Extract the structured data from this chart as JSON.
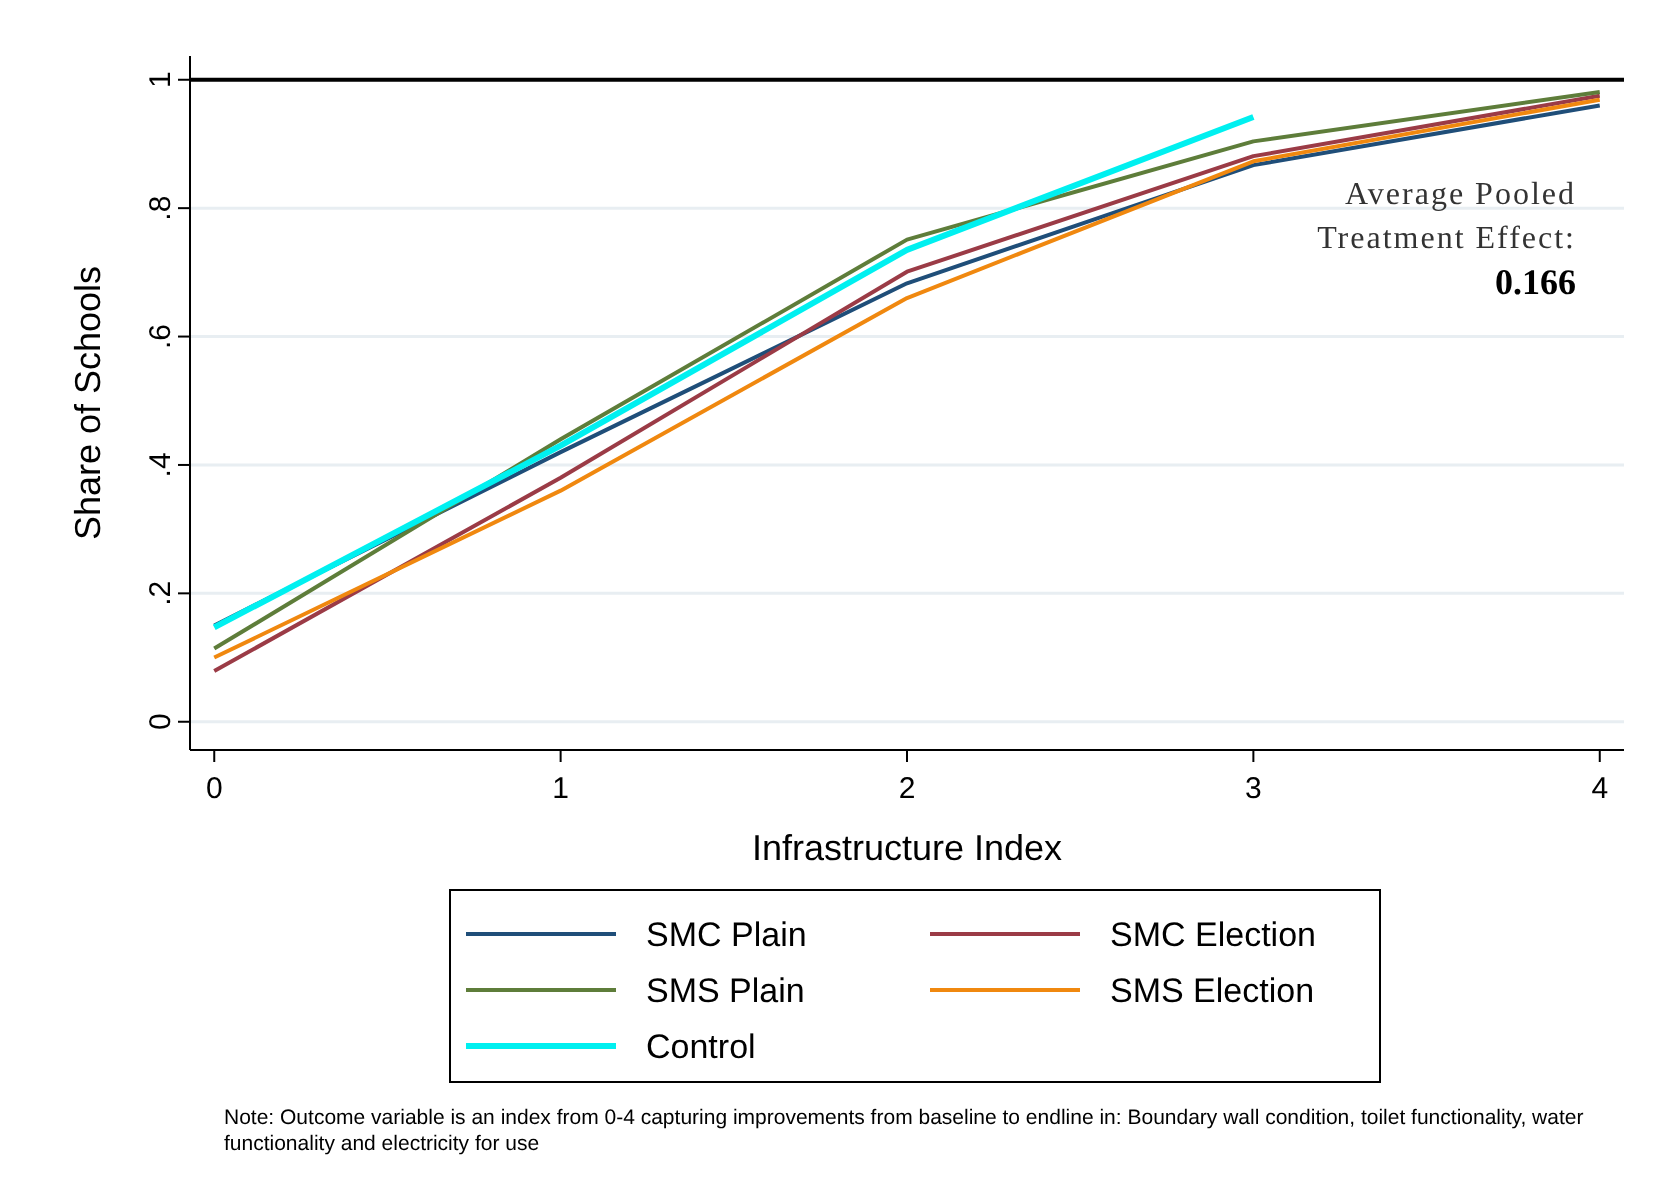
{
  "chart_data": {
    "type": "line",
    "xlabel": "Infrastructure Index",
    "ylabel": "Share of Schools",
    "x": [
      0,
      1,
      2,
      3,
      4
    ],
    "series": [
      {
        "name": "SMC Plain",
        "color": "#1f4e79",
        "values": [
          0.15,
          0.42,
          0.683,
          0.867,
          0.96
        ]
      },
      {
        "name": "SMC Election",
        "color": "#9b3b46",
        "values": [
          0.079,
          0.38,
          0.701,
          0.881,
          0.975
        ]
      },
      {
        "name": "SMS Plain",
        "color": "#5e7d3a",
        "values": [
          0.114,
          0.44,
          0.751,
          0.904,
          0.981
        ]
      },
      {
        "name": "SMS Election",
        "color": "#f0880f",
        "values": [
          0.1,
          0.36,
          0.66,
          0.873,
          0.969
        ]
      },
      {
        "name": "Control",
        "color": "#00f0f0",
        "values": [
          0.147,
          0.43,
          0.735,
          0.942,
          null
        ]
      }
    ],
    "xlim": [
      -0.07,
      4.07
    ],
    "ylim": [
      -0.044,
      1.037
    ],
    "xticks": [
      0,
      1,
      2,
      3,
      4
    ],
    "yticks": [
      0,
      {
        "value": 0.2,
        "label": ".2"
      },
      {
        "value": 0.4,
        "label": ".4"
      },
      {
        "value": 0.6,
        "label": ".6"
      },
      {
        "value": 0.8,
        "label": ".8"
      },
      1
    ],
    "grid": "y",
    "legend": "bottom",
    "marker": "none",
    "line_style": "solid",
    "ref_lines": [
      {
        "axis": "y",
        "value": 1,
        "color": "#000000"
      }
    ],
    "annotations": [
      "Average Pooled Treatment Effect:",
      "0.166",
      "Note: Outcome variable is an index from 0-4 capturing improvements from baseline to endline in: Boundary wall condition, toilet functionality, water functionality and electricity for use"
    ]
  }
}
